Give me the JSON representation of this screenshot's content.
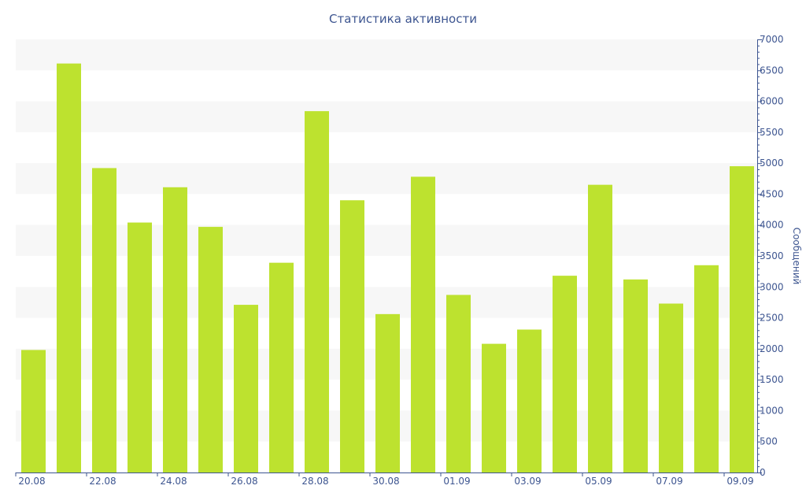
{
  "chart_data": {
    "type": "bar",
    "title": "Статистика активности",
    "xlabel": "",
    "ylabel": "Сообщений",
    "ylim": [
      0,
      7000
    ],
    "yticks": [
      0,
      500,
      1000,
      1500,
      2000,
      2500,
      3000,
      3500,
      4000,
      4500,
      5000,
      5500,
      6000,
      6500,
      7000
    ],
    "y_axis_side": "right",
    "grid": "alternating-bands",
    "categories": [
      "20.08",
      "21.08",
      "22.08",
      "23.08",
      "24.08",
      "25.08",
      "26.08",
      "27.08",
      "28.08",
      "29.08",
      "30.08",
      "31.08",
      "01.09",
      "02.09",
      "03.09",
      "04.09",
      "05.09",
      "06.09",
      "07.09",
      "08.09",
      "09.09"
    ],
    "x_tick_labels": [
      "20.08",
      "",
      "22.08",
      "",
      "24.08",
      "",
      "26.08",
      "",
      "28.08",
      "",
      "30.08",
      "",
      "01.09",
      "",
      "03.09",
      "",
      "05.09",
      "",
      "07.09",
      "",
      "09.09"
    ],
    "values": [
      1980,
      6610,
      4920,
      4040,
      4610,
      3970,
      2710,
      3390,
      5840,
      4400,
      2560,
      4780,
      2870,
      2080,
      2310,
      3180,
      4650,
      3120,
      2730,
      3350,
      4950
    ],
    "colors": {
      "bar": "#bde22f",
      "axis": "#3d5590",
      "band": "#f7f7f7",
      "text": "#3d5590"
    }
  }
}
